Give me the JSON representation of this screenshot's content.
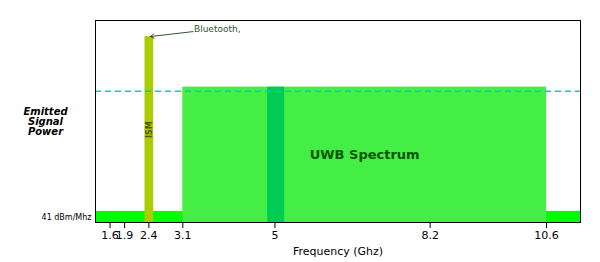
{
  "chart_data": {
    "type": "rect",
    "xlabel": "Frequency (Ghz)",
    "ylabel": "Emitted\nSignal\nPower",
    "xlim": [
      1.3,
      11.3
    ],
    "ylim": [
      0,
      10
    ],
    "xticks": [
      1.6,
      1.9,
      2.4,
      3.1,
      5,
      8.2,
      10.6
    ],
    "tick_labels": "x",
    "grid": false,
    "rects": [
      {
        "x1": 1.3,
        "x2": 11.3,
        "y1": 0,
        "y2": 0.55,
        "color": "#00FF00",
        "label": "41 dBm/Mhz",
        "label_color": "#000000"
      },
      {
        "x1": 3.1,
        "x2": 10.6,
        "y1": 0,
        "y2": 6.7,
        "color": "#44EE44",
        "label": "UWB Spectrum",
        "label_color": "#005500"
      },
      {
        "x1": 4.85,
        "x2": 5.2,
        "y1": 0,
        "y2": 6.7,
        "color": "#00CC55"
      },
      {
        "x1": 2.32,
        "x2": 2.5,
        "y1": 0,
        "y2": 9.2,
        "color": "#AACC00",
        "label": "ISM",
        "label_color": "#555500",
        "annotation": "Bluetooth,",
        "annotation_color": "#335533"
      }
    ],
    "lines": [
      {
        "y": 6.5,
        "color": "#00CCCC",
        "line_style": "dashed"
      }
    ]
  }
}
